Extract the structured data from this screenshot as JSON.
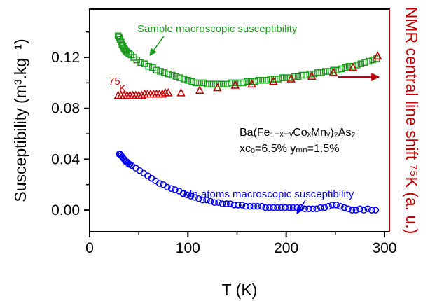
{
  "chart_data": {
    "type": "scatter",
    "xlabel": "T (K)",
    "ylabel_left": "Susceptibility (m³.kg⁻¹)",
    "ylabel_right": "NMR central line shift ⁷⁵K (a. u.)",
    "xlim": [
      0,
      305
    ],
    "ylim": [
      -0.017,
      0.158
    ],
    "xticks": [
      "0",
      "100",
      "200",
      "300"
    ],
    "yticks": [
      "0.00",
      "0.04",
      "0.08",
      "0.12"
    ],
    "annotations": {
      "sample": "Sample macroscopic susceptibility",
      "k75_sup": "75",
      "k75": "K",
      "mn": "Mn atoms macroscopic susceptibility",
      "formula_line1": "Ba(Fe₁₋ₓ₋ᵧCoₓMnᵧ)₂As₂",
      "formula_line2": "xᴄₒ=6.5%  yₘₙ=1.5%"
    },
    "colors": {
      "sample": "#1a9a1a",
      "k75": "#c00000",
      "mn": "#0000ee",
      "right_axis": "#c00000"
    },
    "series": [
      {
        "name": "Sample macroscopic susceptibility",
        "marker": "square",
        "x": [
          29,
          30,
          31,
          32,
          33,
          34,
          35,
          36,
          37,
          38,
          40,
          42,
          45,
          48,
          52,
          56,
          60,
          64,
          68,
          72,
          76,
          80,
          84,
          88,
          92,
          96,
          100,
          104,
          108,
          112,
          116,
          120,
          124,
          128,
          132,
          136,
          140,
          144,
          148,
          152,
          156,
          160,
          164,
          168,
          172,
          176,
          180,
          184,
          188,
          192,
          196,
          200,
          204,
          208,
          212,
          216,
          220,
          224,
          228,
          232,
          236,
          240,
          244,
          248,
          252,
          256,
          260,
          264,
          268,
          272,
          276,
          280,
          284,
          288,
          292
        ],
        "y": [
          0.137,
          0.136,
          0.134,
          0.132,
          0.13,
          0.129,
          0.127,
          0.126,
          0.125,
          0.124,
          0.123,
          0.122,
          0.12,
          0.118,
          0.116,
          0.115,
          0.113,
          0.112,
          0.11,
          0.109,
          0.108,
          0.107,
          0.106,
          0.105,
          0.104,
          0.103,
          0.102,
          0.101,
          0.1,
          0.1,
          0.1,
          0.099,
          0.099,
          0.099,
          0.099,
          0.099,
          0.099,
          0.1,
          0.1,
          0.1,
          0.1,
          0.101,
          0.101,
          0.101,
          0.102,
          0.102,
          0.102,
          0.103,
          0.103,
          0.103,
          0.104,
          0.104,
          0.104,
          0.105,
          0.105,
          0.106,
          0.106,
          0.107,
          0.107,
          0.108,
          0.108,
          0.109,
          0.109,
          0.11,
          0.11,
          0.111,
          0.112,
          0.113,
          0.113,
          0.114,
          0.115,
          0.116,
          0.117,
          0.118,
          0.119
        ]
      },
      {
        "name": "⁷⁵K",
        "marker": "triangle",
        "x": [
          29,
          32,
          35,
          38,
          41,
          44,
          47,
          50,
          53,
          56,
          59,
          62,
          65,
          68,
          71,
          74,
          77,
          80,
          93,
          112,
          130,
          148,
          165,
          187,
          205,
          226,
          248,
          268,
          293
        ],
        "y": [
          0.09,
          0.09,
          0.09,
          0.09,
          0.09,
          0.09,
          0.09,
          0.09,
          0.09,
          0.091,
          0.091,
          0.091,
          0.091,
          0.091,
          0.091,
          0.091,
          0.092,
          0.092,
          0.092,
          0.094,
          0.096,
          0.098,
          0.099,
          0.101,
          0.103,
          0.105,
          0.108,
          0.112,
          0.121
        ]
      },
      {
        "name": "Mn atoms macroscopic susceptibility",
        "marker": "circle",
        "x": [
          30,
          31,
          32,
          33,
          34,
          35,
          36,
          37,
          38,
          39,
          40,
          41,
          43,
          47,
          51,
          55,
          59,
          63,
          67,
          71,
          75,
          79,
          83,
          87,
          91,
          95,
          99,
          103,
          107,
          111,
          115,
          119,
          123,
          127,
          131,
          135,
          139,
          143,
          147,
          151,
          155,
          159,
          163,
          167,
          171,
          175,
          179,
          183,
          187,
          191,
          195,
          199,
          203,
          207,
          211,
          215,
          219,
          223,
          227,
          231,
          235,
          239,
          243,
          247,
          251,
          255,
          259,
          263,
          267,
          271,
          275,
          279,
          283,
          287,
          291
        ],
        "y": [
          0.044,
          0.044,
          0.043,
          0.042,
          0.041,
          0.04,
          0.039,
          0.038,
          0.038,
          0.037,
          0.036,
          0.036,
          0.035,
          0.033,
          0.031,
          0.029,
          0.027,
          0.025,
          0.023,
          0.021,
          0.02,
          0.018,
          0.017,
          0.016,
          0.015,
          0.013,
          0.012,
          0.011,
          0.01,
          0.009,
          0.008,
          0.008,
          0.007,
          0.006,
          0.006,
          0.005,
          0.005,
          0.005,
          0.004,
          0.004,
          0.004,
          0.003,
          0.003,
          0.003,
          0.003,
          0.003,
          0.002,
          0.002,
          0.002,
          0.002,
          0.002,
          0.002,
          0.002,
          0.002,
          0.002,
          0.002,
          0.001,
          0.001,
          0.001,
          0.001,
          0.002,
          0.002,
          0.003,
          0.004,
          0.004,
          0.003,
          0.002,
          0.001,
          0,
          0,
          0.001,
          0,
          0.001,
          0,
          0
        ]
      }
    ]
  }
}
